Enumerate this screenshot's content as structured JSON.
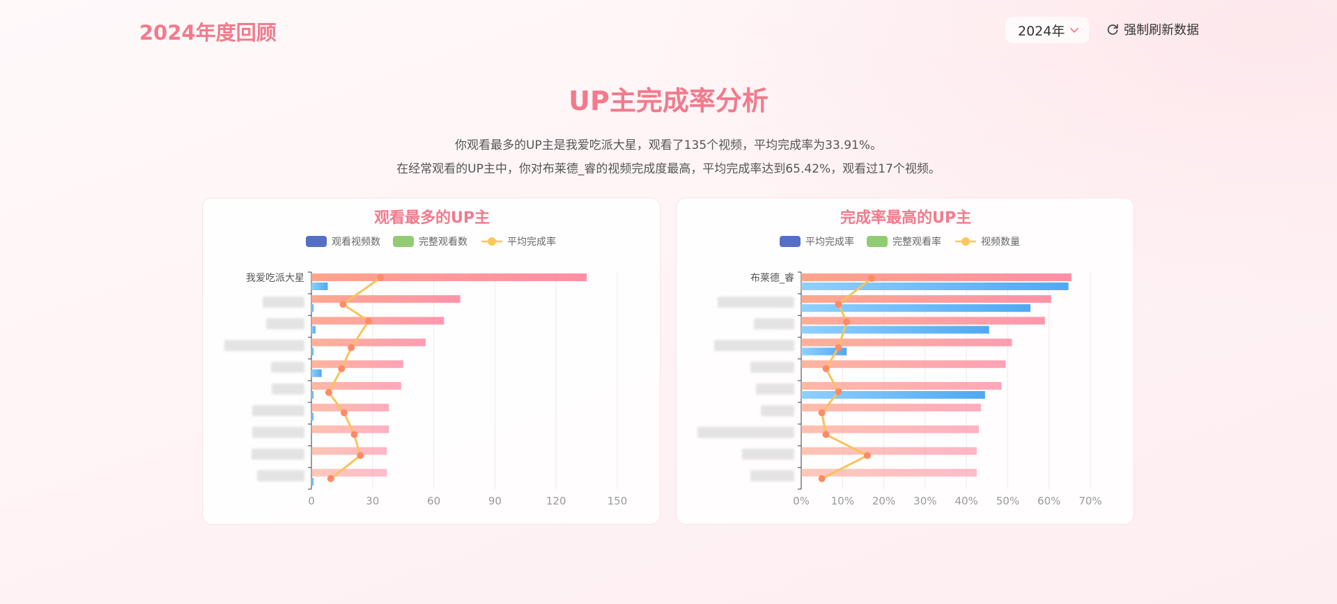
{
  "header": {
    "brand": "2024年度回顾",
    "year_selected": "2024年",
    "refresh_label": "强制刷新数据"
  },
  "page": {
    "title": "UP主完成率分析",
    "desc_line1": "你观看最多的UP主是我爱吃派大星，观看了135个视频，平均完成率为33.91%。",
    "desc_line2": "在经常观看的UP主中，你对布莱德_睿的视频完成度最高，平均完成率达到65.42%，观看过17个视频。"
  },
  "colors": {
    "accent": "#f27a8c",
    "legend_blue": "#5470c6",
    "legend_green": "#91cc75",
    "legend_yellow": "#fac858",
    "bar_pink": "#ff8fa3",
    "bar_blue": "#5fb4f5",
    "line_yellow": "#f7c35a",
    "point_orange": "#ff8a66"
  },
  "chart_data": [
    {
      "type": "bar",
      "orientation": "horizontal",
      "title": "观看最多的UP主",
      "legend": [
        "观看视频数",
        "完整观看数",
        "平均完成率"
      ],
      "categories": [
        "我爱吃派大星",
        "",
        "",
        "",
        "",
        "",
        "",
        "",
        "",
        ""
      ],
      "series": [
        {
          "name": "观看视频数",
          "values": [
            135,
            73,
            65,
            56,
            45,
            44,
            38,
            38,
            37,
            37
          ]
        },
        {
          "name": "完整观看数",
          "values": [
            8,
            1,
            2,
            1,
            5,
            1,
            1,
            0,
            0,
            1
          ]
        },
        {
          "name": "平均完成率",
          "values": [
            33.91,
            15.5,
            28,
            19.5,
            14.8,
            8.5,
            16,
            21,
            24,
            9.5
          ]
        }
      ],
      "xlim": [
        0,
        150
      ],
      "xticks": [
        "0",
        "30",
        "60",
        "90",
        "120",
        "150"
      ]
    },
    {
      "type": "bar",
      "orientation": "horizontal",
      "title": "完成率最高的UP主",
      "legend": [
        "平均完成率",
        "完整观看率",
        "视频数量"
      ],
      "categories": [
        "布莱德_睿",
        "",
        "",
        "",
        "",
        "",
        "",
        "",
        "",
        ""
      ],
      "series": [
        {
          "name": "平均完成率",
          "values": [
            65.42,
            60.5,
            59,
            51,
            49.5,
            48.5,
            43.5,
            43,
            42.5,
            42.5
          ]
        },
        {
          "name": "完整观看率",
          "values": [
            64.7,
            55.5,
            45.5,
            11,
            0,
            44.5,
            0,
            0,
            0,
            0
          ]
        },
        {
          "name": "视频数量",
          "values": [
            17,
            9,
            11,
            9,
            6,
            9,
            5,
            6,
            16,
            5
          ]
        }
      ],
      "xlim": [
        0,
        70
      ],
      "xticks": [
        "0%",
        "10%",
        "20%",
        "30%",
        "40%",
        "50%",
        "60%",
        "70%"
      ]
    }
  ]
}
